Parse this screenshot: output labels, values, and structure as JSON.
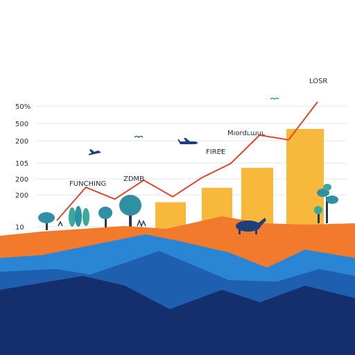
{
  "chart_data": {
    "type": "bar",
    "title": "",
    "xlabel": "",
    "ylabel": "",
    "grid": true,
    "y_tick_labels": [
      "50%",
      "500",
      "200",
      "105",
      "200",
      "200",
      "10"
    ],
    "annotations": [
      "LOSR",
      "Mıordʟɯuʟ",
      "FIRE̛E",
      "FUNCHING",
      "ZDMB"
    ],
    "bars": {
      "values": [
        0.24,
        0.37,
        0.55,
        0.9
      ],
      "ylim": [
        0,
        1
      ],
      "color": "#f7b83c"
    },
    "line": {
      "values": [
        0.0,
        0.28,
        0.18,
        0.34,
        0.2,
        0.36,
        0.48,
        0.72,
        0.68,
        1.0
      ],
      "ylim": [
        0,
        1
      ],
      "color": "#e0452b"
    }
  },
  "colors": {
    "orange_ground": "#f27a2d",
    "blue_light": "#2a86d4",
    "blue_mid": "#1e5fb0",
    "blue_dark": "#142f6b",
    "tree_teal": "#2f8fa3",
    "grid": "#e3e6ea"
  },
  "decorations": [
    "tree-icon",
    "bird-icon",
    "airplane-icon",
    "animal-icon"
  ]
}
